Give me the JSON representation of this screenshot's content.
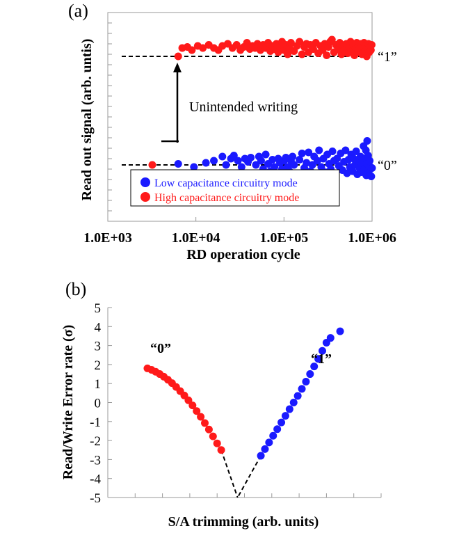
{
  "colors": {
    "red": "#ff1a1a",
    "blue": "#1a1aff",
    "black": "#000000"
  },
  "chart_data": [
    {
      "panel": "(a)",
      "type": "scatter",
      "x_scale": "log",
      "xlabel": "RD operation cycle",
      "ylabel": "Read out signal  (arb. untis)",
      "xticks": [
        "1.0E+03",
        "1.0E+04",
        "1.0E+05",
        "1.0E+06"
      ],
      "xlim": [
        1000,
        1000000
      ],
      "ylim": [
        0,
        10
      ],
      "levels": [
        {
          "label": "“1”",
          "y": 7.9
        },
        {
          "label": "“0”",
          "y": 2.7
        }
      ],
      "annotation": "Unintended writing",
      "series": [
        {
          "name": "Low capacitance circuitry mode",
          "color": "#1a1aff",
          "points": [
            [
              3200,
              2.25
            ],
            [
              6300,
              2.75
            ],
            [
              9500,
              2.6
            ],
            [
              13000,
              2.8
            ],
            [
              16000,
              2.9
            ],
            [
              20000,
              3.1
            ],
            [
              22000,
              2.7
            ],
            [
              25000,
              3.0
            ],
            [
              27000,
              3.15
            ],
            [
              30000,
              2.9
            ],
            [
              33000,
              2.6
            ],
            [
              36000,
              3.0
            ],
            [
              39000,
              2.85
            ],
            [
              42000,
              3.05
            ],
            [
              45000,
              2.3
            ],
            [
              48000,
              2.7
            ],
            [
              52000,
              3.1
            ],
            [
              55000,
              2.9
            ],
            [
              58000,
              2.5
            ],
            [
              62000,
              3.2
            ],
            [
              66000,
              2.75
            ],
            [
              70000,
              2.4
            ],
            [
              74000,
              2.95
            ],
            [
              78000,
              2.6
            ],
            [
              82000,
              2.1
            ],
            [
              86000,
              3.0
            ],
            [
              90000,
              2.8
            ],
            [
              95000,
              2.5
            ],
            [
              100000,
              2.9
            ],
            [
              105000,
              3.05
            ],
            [
              110000,
              2.6
            ],
            [
              115000,
              2.4
            ],
            [
              120000,
              2.9
            ],
            [
              125000,
              3.1
            ],
            [
              130000,
              2.7
            ],
            [
              140000,
              2.3
            ],
            [
              150000,
              2.95
            ],
            [
              160000,
              3.25
            ],
            [
              170000,
              2.55
            ],
            [
              180000,
              2.8
            ],
            [
              190000,
              3.3
            ],
            [
              200000,
              2.4
            ],
            [
              210000,
              2.7
            ],
            [
              220000,
              3.1
            ],
            [
              230000,
              2.25
            ],
            [
              240000,
              2.9
            ],
            [
              250000,
              3.4
            ],
            [
              265000,
              2.6
            ],
            [
              280000,
              3.0
            ],
            [
              295000,
              2.35
            ],
            [
              310000,
              3.2
            ],
            [
              325000,
              2.75
            ],
            [
              340000,
              2.5
            ],
            [
              355000,
              3.35
            ],
            [
              370000,
              2.9
            ],
            [
              385000,
              2.2
            ],
            [
              400000,
              3.0
            ],
            [
              420000,
              2.65
            ],
            [
              440000,
              3.25
            ],
            [
              460000,
              2.45
            ],
            [
              480000,
              2.85
            ],
            [
              500000,
              3.4
            ],
            [
              520000,
              2.3
            ],
            [
              540000,
              2.95
            ],
            [
              560000,
              2.6
            ],
            [
              580000,
              3.2
            ],
            [
              600000,
              2.4
            ],
            [
              620000,
              3.0
            ],
            [
              640000,
              2.7
            ],
            [
              660000,
              3.35
            ],
            [
              680000,
              2.25
            ],
            [
              700000,
              2.9
            ],
            [
              720000,
              2.55
            ],
            [
              740000,
              3.1
            ],
            [
              760000,
              2.35
            ],
            [
              780000,
              2.8
            ],
            [
              800000,
              3.6
            ],
            [
              820000,
              2.5
            ],
            [
              840000,
              3.0
            ],
            [
              860000,
              2.2
            ],
            [
              880000,
              2.75
            ],
            [
              900000,
              3.15
            ],
            [
              920000,
              2.4
            ],
            [
              940000,
              2.9
            ],
            [
              960000,
              2.6
            ],
            [
              980000,
              2.15
            ],
            [
              1000000,
              2.55
            ],
            [
              850000,
              3.4
            ],
            [
              880000,
              3.85
            ]
          ]
        },
        {
          "name": "High capacitance circuitry mode",
          "color": "#ff1a1a",
          "points": [
            [
              3200,
              2.7
            ],
            [
              6300,
              7.9
            ],
            [
              7000,
              8.3
            ],
            [
              8000,
              8.35
            ],
            [
              9000,
              8.2
            ],
            [
              10500,
              8.4
            ],
            [
              12000,
              8.3
            ],
            [
              14000,
              8.45
            ],
            [
              16000,
              8.3
            ],
            [
              18000,
              8.2
            ],
            [
              20000,
              8.4
            ],
            [
              23000,
              8.5
            ],
            [
              26000,
              8.3
            ],
            [
              29000,
              8.45
            ],
            [
              32000,
              8.2
            ],
            [
              35000,
              8.35
            ],
            [
              38000,
              8.55
            ],
            [
              41000,
              8.25
            ],
            [
              44000,
              8.4
            ],
            [
              47000,
              8.3
            ],
            [
              50000,
              8.5
            ],
            [
              54000,
              8.2
            ],
            [
              58000,
              8.45
            ],
            [
              62000,
              8.3
            ],
            [
              66000,
              8.55
            ],
            [
              70000,
              8.15
            ],
            [
              74000,
              8.4
            ],
            [
              78000,
              8.25
            ],
            [
              82000,
              8.5
            ],
            [
              86000,
              8.1
            ],
            [
              90000,
              8.35
            ],
            [
              95000,
              8.6
            ],
            [
              100000,
              8.2
            ],
            [
              105000,
              8.45
            ],
            [
              110000,
              8.0
            ],
            [
              115000,
              8.3
            ],
            [
              120000,
              8.55
            ],
            [
              130000,
              8.15
            ],
            [
              140000,
              8.4
            ],
            [
              150000,
              8.6
            ],
            [
              160000,
              8.0
            ],
            [
              170000,
              8.35
            ],
            [
              180000,
              8.5
            ],
            [
              190000,
              8.1
            ],
            [
              200000,
              8.45
            ],
            [
              215000,
              8.25
            ],
            [
              230000,
              8.55
            ],
            [
              245000,
              8.05
            ],
            [
              260000,
              8.4
            ],
            [
              275000,
              8.2
            ],
            [
              290000,
              8.5
            ],
            [
              305000,
              7.95
            ],
            [
              320000,
              8.35
            ],
            [
              335000,
              8.6
            ],
            [
              350000,
              8.7
            ],
            [
              370000,
              8.1
            ],
            [
              390000,
              8.45
            ],
            [
              410000,
              8.25
            ],
            [
              430000,
              8.55
            ],
            [
              450000,
              8.0
            ],
            [
              470000,
              8.4
            ],
            [
              490000,
              8.2
            ],
            [
              510000,
              8.5
            ],
            [
              530000,
              8.05
            ],
            [
              550000,
              8.35
            ],
            [
              570000,
              8.6
            ],
            [
              590000,
              8.15
            ],
            [
              610000,
              8.45
            ],
            [
              630000,
              7.95
            ],
            [
              650000,
              8.3
            ],
            [
              670000,
              8.55
            ],
            [
              690000,
              8.1
            ],
            [
              710000,
              8.4
            ],
            [
              730000,
              8.2
            ],
            [
              750000,
              8.5
            ],
            [
              770000,
              8.0
            ],
            [
              790000,
              8.35
            ],
            [
              810000,
              8.55
            ],
            [
              830000,
              8.15
            ],
            [
              850000,
              8.4
            ],
            [
              870000,
              7.9
            ],
            [
              890000,
              8.3
            ],
            [
              910000,
              8.5
            ],
            [
              930000,
              8.1
            ],
            [
              950000,
              8.35
            ],
            [
              970000,
              8.2
            ],
            [
              990000,
              8.45
            ]
          ]
        }
      ],
      "legend_position": "lower-left"
    },
    {
      "panel": "(b)",
      "type": "scatter",
      "xlabel": "S/A trimming (arb. units)",
      "ylabel": "Read/Write Error rate (σ)",
      "yticks": [
        "5",
        "4",
        "3",
        "2",
        "1",
        "0",
        "-1",
        "-2",
        "-3",
        "-4",
        "-5"
      ],
      "ylim": [
        -5,
        5
      ],
      "xlim": [
        0,
        10
      ],
      "series": [
        {
          "name": "“0”",
          "color": "#ff1a1a",
          "points": [
            [
              1.45,
              1.8
            ],
            [
              1.6,
              1.72
            ],
            [
              1.75,
              1.62
            ],
            [
              1.9,
              1.5
            ],
            [
              2.05,
              1.36
            ],
            [
              2.2,
              1.2
            ],
            [
              2.35,
              1.02
            ],
            [
              2.5,
              0.82
            ],
            [
              2.65,
              0.6
            ],
            [
              2.8,
              0.37
            ],
            [
              2.95,
              0.12
            ],
            [
              3.1,
              -0.15
            ],
            [
              3.25,
              -0.45
            ],
            [
              3.4,
              -0.75
            ],
            [
              3.55,
              -1.08
            ],
            [
              3.7,
              -1.42
            ],
            [
              3.85,
              -1.78
            ],
            [
              4.0,
              -2.15
            ],
            [
              4.15,
              -2.5
            ]
          ]
        },
        {
          "name": "“1”",
          "color": "#1a1aff",
          "points": [
            [
              5.6,
              -2.8
            ],
            [
              5.75,
              -2.45
            ],
            [
              5.9,
              -2.1
            ],
            [
              6.05,
              -1.75
            ],
            [
              6.2,
              -1.4
            ],
            [
              6.35,
              -1.05
            ],
            [
              6.5,
              -0.7
            ],
            [
              6.65,
              -0.35
            ],
            [
              6.8,
              0.0
            ],
            [
              6.95,
              0.35
            ],
            [
              7.1,
              0.72
            ],
            [
              7.25,
              1.1
            ],
            [
              7.4,
              1.5
            ],
            [
              7.55,
              1.9
            ],
            [
              7.7,
              2.3
            ],
            [
              7.85,
              2.72
            ],
            [
              8.0,
              3.15
            ],
            [
              8.15,
              3.4
            ],
            [
              8.5,
              3.75
            ]
          ]
        }
      ],
      "guide_lines": [
        [
          [
            4.15,
            -2.5
          ],
          [
            4.75,
            -5.0
          ]
        ],
        [
          [
            5.6,
            -2.8
          ],
          [
            4.75,
            -5.0
          ]
        ]
      ]
    }
  ]
}
